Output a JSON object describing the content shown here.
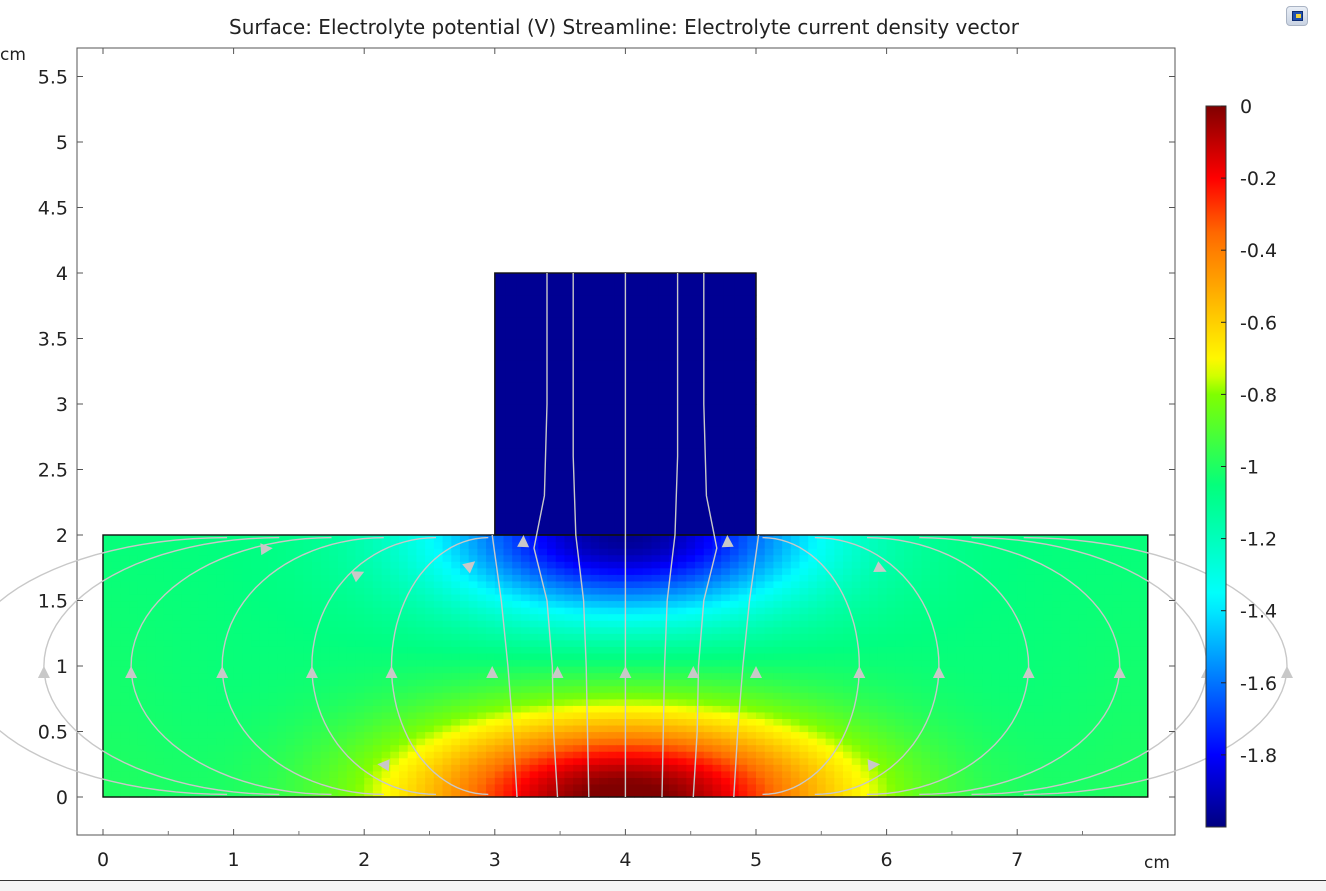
{
  "chart_data": {
    "type": "heatmap",
    "title": "Surface: Electrolyte potential (V)  Streamline: Electrolyte current density vector",
    "x_unit": "cm",
    "y_unit": "cm",
    "xlim": [
      -0.2,
      8.0
    ],
    "ylim": [
      -0.28,
      5.72
    ],
    "x_ticks": [
      "0",
      "1",
      "2",
      "3",
      "4",
      "5",
      "6",
      "7"
    ],
    "y_ticks": [
      "0",
      "0.5",
      "1",
      "1.5",
      "2",
      "2.5",
      "3",
      "3.5",
      "4",
      "4.5",
      "5",
      "5.5"
    ],
    "domain": {
      "bottom_rect": {
        "x": [
          0,
          8
        ],
        "y": [
          0,
          2
        ]
      },
      "top_rect": {
        "x": [
          3,
          5
        ],
        "y": [
          2,
          4
        ]
      }
    },
    "colorbar": {
      "min": -2.0,
      "max": 0.0,
      "tick_labels": [
        "0",
        "-0.2",
        "-0.4",
        "-0.6",
        "-0.8",
        "-1",
        "-1.2",
        "-1.4",
        "-1.6",
        "-1.8"
      ],
      "colormap": "rainbow"
    },
    "potential_field": {
      "value_range": [
        -2.0,
        0.0
      ],
      "high_at": "bottom center (x 3-5, y 0)",
      "low_at": "top rectangle (x 3-5, y 2-4)",
      "background_value": -1.05
    },
    "streamline_color": "#c8c8c8"
  },
  "ui": {
    "corner_button": "toolbar-icon"
  }
}
